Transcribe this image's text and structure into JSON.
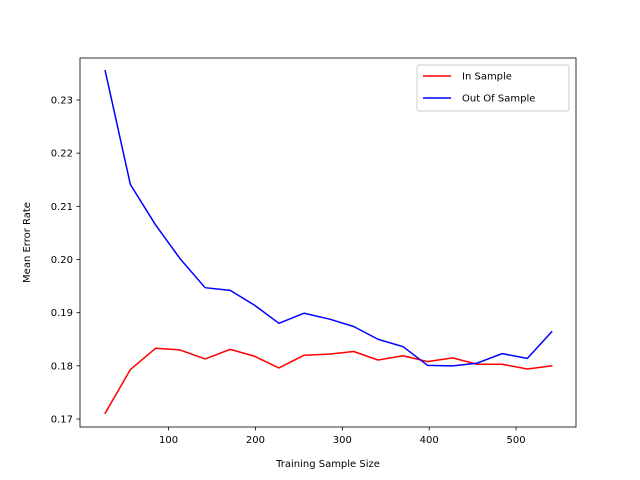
{
  "chart_data": {
    "type": "line",
    "title": "",
    "xlabel": "Training Sample Size",
    "ylabel": "Mean Error Rate",
    "xlim": [
      -2,
      569
    ],
    "ylim": [
      0.1685,
      0.2379
    ],
    "xticks": [
      100,
      200,
      300,
      400,
      500
    ],
    "yticks": [
      0.17,
      0.18,
      0.19,
      0.2,
      0.21,
      0.22,
      0.23
    ],
    "ytick_labels": [
      "0.17",
      "0.18",
      "0.19",
      "0.20",
      "0.21",
      "0.22",
      "0.23"
    ],
    "grid": false,
    "legend_position": "top-right",
    "x": [
      27,
      56,
      85,
      113,
      142,
      171,
      199,
      227,
      256,
      285,
      313,
      341,
      370,
      398,
      427,
      455,
      484,
      513,
      541
    ],
    "series": [
      {
        "name": "In Sample",
        "color": "#ff0000",
        "values": [
          0.1711,
          0.1793,
          0.1833,
          0.183,
          0.1813,
          0.1831,
          0.1818,
          0.1796,
          0.182,
          0.1822,
          0.1827,
          0.1811,
          0.1819,
          0.1808,
          0.1815,
          0.1803,
          0.1803,
          0.1794,
          0.18
        ]
      },
      {
        "name": "Out Of Sample",
        "color": "#0000ff",
        "values": [
          0.2355,
          0.2141,
          0.2065,
          0.2002,
          0.1947,
          0.1942,
          0.1914,
          0.188,
          0.1899,
          0.1888,
          0.1874,
          0.185,
          0.1836,
          0.1801,
          0.18,
          0.1805,
          0.1823,
          0.1814,
          0.1864
        ]
      }
    ]
  }
}
